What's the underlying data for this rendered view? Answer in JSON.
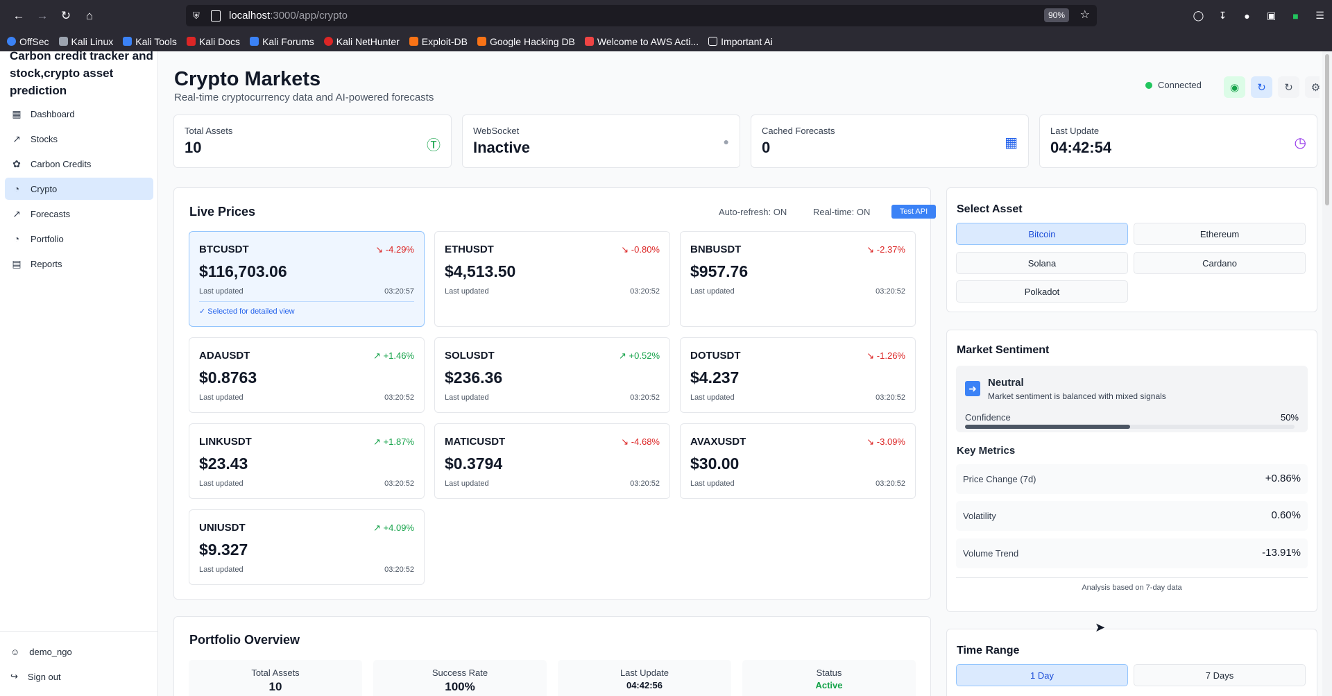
{
  "browser": {
    "url_host": "localhost",
    "url_path": ":3000/app/crypto",
    "zoom": "90%",
    "bookmarks": [
      "OffSec",
      "Kali Linux",
      "Kali Tools",
      "Kali Docs",
      "Kali Forums",
      "Kali NetHunter",
      "Exploit-DB",
      "Google Hacking DB",
      "Welcome to AWS Acti...",
      "Important Ai"
    ]
  },
  "sidebar": {
    "brand": "Carbon credit tracker and stock,crypto asset prediction",
    "items": [
      {
        "label": "Dashboard",
        "icon": "bar-chart-icon"
      },
      {
        "label": "Stocks",
        "icon": "trend-icon"
      },
      {
        "label": "Carbon Credits",
        "icon": "leaf-icon"
      },
      {
        "label": "Crypto",
        "icon": "pie-chart-icon"
      },
      {
        "label": "Forecasts",
        "icon": "trend-icon"
      },
      {
        "label": "Portfolio",
        "icon": "pie-chart-icon"
      },
      {
        "label": "Reports",
        "icon": "document-icon"
      }
    ],
    "user": "demo_ngo",
    "signout": "Sign out"
  },
  "header": {
    "title": "Crypto Markets",
    "subtitle": "Real-time cryptocurrency data and AI-powered forecasts",
    "status": "Connected"
  },
  "stats": [
    {
      "label": "Total Assets",
      "value": "10"
    },
    {
      "label": "WebSocket",
      "value": "Inactive"
    },
    {
      "label": "Cached Forecasts",
      "value": "0"
    },
    {
      "label": "Last Update",
      "value": "04:42:54"
    }
  ],
  "live": {
    "title": "Live Prices",
    "auto_refresh": "Auto-refresh: ON",
    "realtime": "Real-time: ON",
    "test_api": "Test API",
    "last_updated_label": "Last updated",
    "selected_note": "✓ Selected for detailed view",
    "prices": [
      {
        "symbol": "BTCUSDT",
        "change": "-4.29%",
        "price": "$116,703.06",
        "time": "03:20:57"
      },
      {
        "symbol": "ETHUSDT",
        "change": "-0.80%",
        "price": "$4,513.50",
        "time": "03:20:52"
      },
      {
        "symbol": "BNBUSDT",
        "change": "-2.37%",
        "price": "$957.76",
        "time": "03:20:52"
      },
      {
        "symbol": "ADAUSDT",
        "change": "+1.46%",
        "price": "$0.8763",
        "time": "03:20:52"
      },
      {
        "symbol": "SOLUSDT",
        "change": "+0.52%",
        "price": "$236.36",
        "time": "03:20:52"
      },
      {
        "symbol": "DOTUSDT",
        "change": "-1.26%",
        "price": "$4.237",
        "time": "03:20:52"
      },
      {
        "symbol": "LINKUSDT",
        "change": "+1.87%",
        "price": "$23.43",
        "time": "03:20:52"
      },
      {
        "symbol": "MATICUSDT",
        "change": "-4.68%",
        "price": "$0.3794",
        "time": "03:20:52"
      },
      {
        "symbol": "AVAXUSDT",
        "change": "-3.09%",
        "price": "$30.00",
        "time": "03:20:52"
      },
      {
        "symbol": "UNIUSDT",
        "change": "+4.09%",
        "price": "$9.327",
        "time": "03:20:52"
      }
    ]
  },
  "select_asset": {
    "title": "Select Asset",
    "options": [
      "Bitcoin",
      "Ethereum",
      "Solana",
      "Cardano",
      "Polkadot"
    ]
  },
  "sentiment": {
    "title": "Market Sentiment",
    "label": "Neutral",
    "description": "Market sentiment is balanced with mixed signals",
    "confidence_label": "Confidence",
    "confidence_value": "50%",
    "confidence_fraction": 0.5,
    "key_metrics_title": "Key Metrics",
    "metrics": [
      {
        "label": "Price Change (7d)",
        "value": "+0.86%"
      },
      {
        "label": "Volatility",
        "value": "0.60%"
      },
      {
        "label": "Volume Trend",
        "value": "-13.91%"
      }
    ],
    "footnote": "Analysis based on 7-day data"
  },
  "time_range": {
    "title": "Time Range",
    "options": [
      "1 Day",
      "7 Days"
    ]
  },
  "portfolio": {
    "title": "Portfolio Overview",
    "cells": [
      {
        "label": "Total Assets",
        "value": "10"
      },
      {
        "label": "Success Rate",
        "value": "100%"
      },
      {
        "label": "Last Update",
        "value": "04:42:56"
      },
      {
        "label": "Status",
        "value": "Active"
      }
    ]
  },
  "colors": {
    "accent": "#3b82f6",
    "positive": "#16a34a",
    "negative": "#dc2626"
  }
}
